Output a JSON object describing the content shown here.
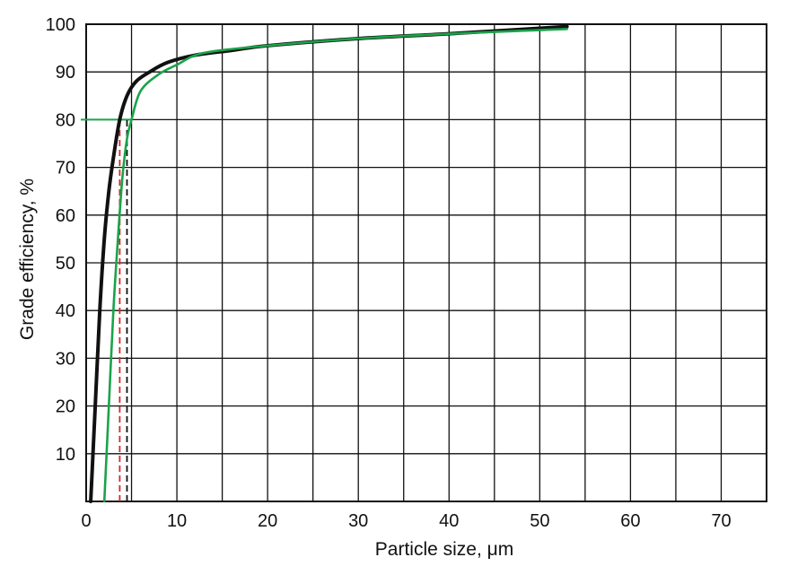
{
  "chart_data": {
    "type": "line",
    "xlabel": "Particle size, μm",
    "ylabel": "Grade efficiency, %",
    "xlim": [
      0,
      75
    ],
    "ylim": [
      0,
      100
    ],
    "x_ticks": [
      0,
      10,
      20,
      30,
      40,
      50,
      60,
      70
    ],
    "y_ticks": [
      10,
      20,
      30,
      40,
      50,
      60,
      70,
      80,
      90,
      100
    ],
    "x_tick_labels": [
      "0",
      "10",
      "20",
      "30",
      "40",
      "50",
      "60",
      "70"
    ],
    "y_tick_labels": [
      "10",
      "20",
      "30",
      "40",
      "50",
      "60",
      "70",
      "80",
      "90",
      "100"
    ],
    "grid_x": [
      0,
      5,
      10,
      15,
      20,
      25,
      30,
      35,
      40,
      45,
      50,
      55,
      60,
      65,
      70,
      75
    ],
    "grid_y": [
      0,
      10,
      20,
      30,
      40,
      50,
      60,
      70,
      80,
      90,
      100
    ],
    "grid": true,
    "series": [
      {
        "color": "#111111",
        "x": [
          0.5,
          1.0,
          1.5,
          2.0,
          2.5,
          3.0,
          3.7,
          4.5,
          5.5,
          7.0,
          9.0,
          12.0,
          16.0,
          20.0,
          30.0,
          40.0,
          53.0
        ],
        "y": [
          0,
          20,
          40,
          55,
          65,
          72,
          80,
          85,
          88,
          90,
          92,
          93.5,
          94.5,
          95.5,
          97,
          98,
          99.5
        ]
      },
      {
        "color": "#1aa34a",
        "x": [
          2.0,
          2.5,
          3.0,
          3.5,
          4.0,
          4.5,
          5.0,
          6.0,
          8.0,
          10.0,
          13.0,
          20.0,
          30.0,
          40.0,
          53.0
        ],
        "y": [
          0,
          20,
          40,
          55,
          68,
          76,
          80,
          86,
          89.5,
          91.5,
          94,
          95.5,
          97,
          98,
          99
        ]
      }
    ],
    "reference_lines": [
      {
        "kind": "horizontal",
        "color": "#1aa34a",
        "y": 80,
        "x_from": 0,
        "x_to": 5.0
      },
      {
        "kind": "vertical",
        "color": "#d62728",
        "style": "dashed",
        "x": 3.7,
        "y_from": 0,
        "y_to": 80
      },
      {
        "kind": "vertical",
        "color": "#111111",
        "style": "dashed",
        "x": 4.5,
        "y_from": 0,
        "y_to": 80
      }
    ]
  }
}
